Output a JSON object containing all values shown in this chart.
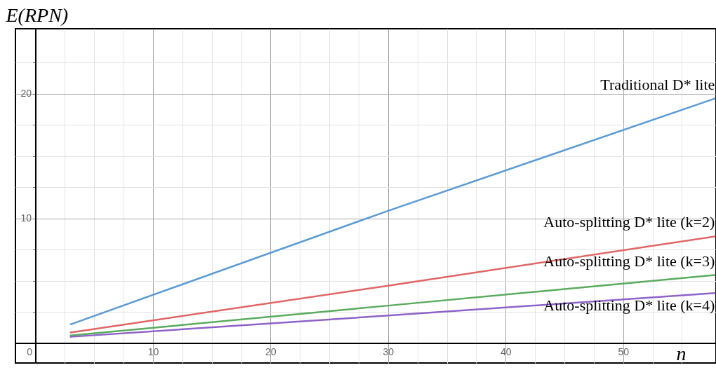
{
  "chart_data": {
    "type": "line",
    "xlabel": "n",
    "ylabel": "E(RPN)",
    "xlim": [
      -1.7,
      57.9
    ],
    "ylim": [
      -1.6,
      25.2
    ],
    "xticks": [
      0,
      {
        "value": 2.5,
        "label": null
      },
      {
        "value": 5,
        "label": null
      },
      {
        "value": 7.5,
        "label": null
      },
      10,
      {
        "value": 12.5,
        "label": null
      },
      {
        "value": 15,
        "label": null
      },
      {
        "value": 17.5,
        "label": null
      },
      20,
      {
        "value": 22.5,
        "label": null
      },
      {
        "value": 25,
        "label": null
      },
      {
        "value": 27.5,
        "label": null
      },
      30,
      {
        "value": 32.5,
        "label": null
      },
      {
        "value": 35,
        "label": null
      },
      {
        "value": 37.5,
        "label": null
      },
      40,
      {
        "value": 42.5,
        "label": null
      },
      {
        "value": 45,
        "label": null
      },
      {
        "value": 47.5,
        "label": null
      },
      50,
      {
        "value": 52.5,
        "label": null
      },
      {
        "value": 55,
        "label": null
      }
    ],
    "yticks": [
      {
        "value": 2.5,
        "label": null
      },
      {
        "value": 5,
        "label": null
      },
      {
        "value": 7.5,
        "label": null
      },
      10,
      {
        "value": 12.5,
        "label": null
      },
      {
        "value": 15,
        "label": null
      },
      {
        "value": 17.5,
        "label": null
      },
      20,
      {
        "value": 22.5,
        "label": null
      }
    ],
    "grid": true,
    "x": [
      3,
      30,
      57.8
    ],
    "series": [
      {
        "name": "Traditional D* lite",
        "color": "#5b9bd5",
        "values": [
          1.5,
          10.6,
          19.6
        ]
      },
      {
        "name": "Auto-splitting D* lite (k=2)",
        "color": "#e06666",
        "values": [
          0.85,
          4.6,
          8.55
        ]
      },
      {
        "name": "Auto-splitting D* lite (k=3)",
        "color": "#5aab5f",
        "values": [
          0.6,
          3.0,
          5.45
        ]
      },
      {
        "name": "Auto-splitting D* lite (k=4)",
        "color": "#8e63c9",
        "values": [
          0.5,
          2.2,
          4.0
        ]
      }
    ]
  }
}
